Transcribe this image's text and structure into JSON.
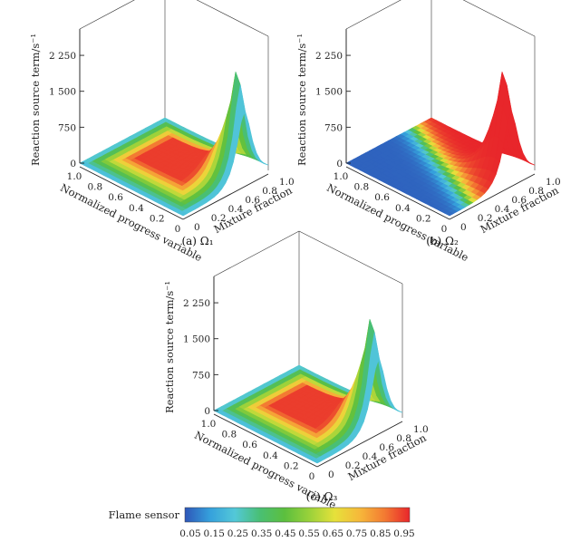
{
  "figure": {
    "colorbar": {
      "label": "Flame sensor",
      "ticks": [
        "0.05",
        "0.15",
        "0.25",
        "0.35",
        "0.45",
        "0.55",
        "0.65",
        "0.75",
        "0.85",
        "0.95"
      ],
      "colors": [
        "#2e56b8",
        "#35a0dc",
        "#53c8d8",
        "#49bf74",
        "#5cbf3e",
        "#9bd23a",
        "#e6e13a",
        "#f6b83a",
        "#f37a32",
        "#e8262b"
      ]
    }
  },
  "chart_data": [
    {
      "type": "surface3d",
      "title": "(a)  Ω₁",
      "zlabel": "Reaction source term/s⁻¹",
      "xlabel": "Normalized progress variable",
      "ylabel": "Mixture fraction",
      "zticks": [
        "0",
        "750",
        "1 500",
        "2 250"
      ],
      "xticks": [
        "0",
        "0.2",
        "0.4",
        "0.6",
        "0.8",
        "1.0"
      ],
      "yticks": [
        "0",
        "0.2",
        "0.4",
        "0.6",
        "0.8",
        "1.0"
      ],
      "zlim": [
        0,
        2800
      ],
      "peak_value": 2700,
      "coloring": "mostly-flame"
    },
    {
      "type": "surface3d",
      "title": "(b)  Ω₂",
      "zlabel": "Reaction source term/s⁻¹",
      "xlabel": "Normalized progress variable",
      "ylabel": "Mixture fraction",
      "zticks": [
        "0",
        "750",
        "1 500",
        "2 250"
      ],
      "xticks": [
        "0",
        "0.2",
        "0.4",
        "0.6",
        "0.8",
        "1.0"
      ],
      "yticks": [
        "0",
        "0.2",
        "0.4",
        "0.6",
        "0.8",
        "1.0"
      ],
      "zlim": [
        0,
        2800
      ],
      "peak_value": 2700,
      "coloring": "half-flame"
    },
    {
      "type": "surface3d",
      "title": "(c)  Ω₃",
      "zlabel": "Reaction source term/s⁻¹",
      "xlabel": "Normalized progress variable",
      "ylabel": "Mixture fraction",
      "zticks": [
        "0",
        "750",
        "1 500",
        "2 250"
      ],
      "xticks": [
        "0",
        "0.2",
        "0.4",
        "0.6",
        "0.8",
        "1.0"
      ],
      "yticks": [
        "0",
        "0.2",
        "0.4",
        "0.6",
        "0.8",
        "1.0"
      ],
      "zlim": [
        0,
        2800
      ],
      "peak_value": 2700,
      "coloring": "mostly-flame"
    }
  ]
}
